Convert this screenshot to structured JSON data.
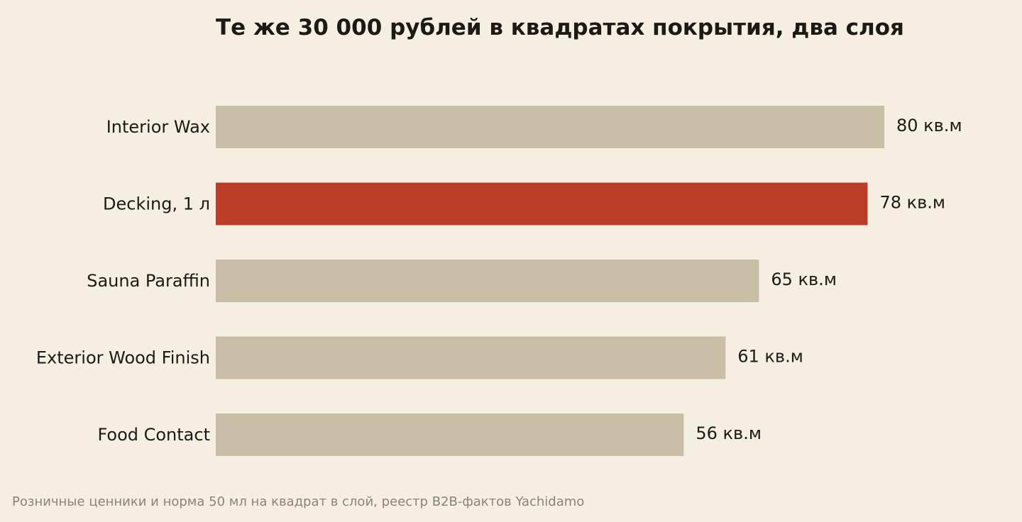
{
  "chart_data": {
    "type": "bar",
    "orientation": "horizontal",
    "title": "Те же 30 000 рублей в квадратах покрытия, два слоя",
    "categories": [
      "Interior Wax",
      "Decking, 1 л",
      "Sauna Paraffin",
      "Exterior Wood Finish",
      "Food Contact"
    ],
    "values": [
      80,
      78,
      65,
      61,
      56
    ],
    "value_labels": [
      "80 кв.м",
      "78 кв.м",
      "65 кв.м",
      "61 кв.м",
      "56 кв.м"
    ],
    "highlight": "Decking, 1 л",
    "xlim": [
      0,
      80
    ],
    "grid": false,
    "source": "Розничные ценники и норма 50 мл на квадрат в слой, реестр B2B-фактов Yachidamo"
  },
  "colors": {
    "background": "#f5efe2",
    "bar": "#c9bfa6",
    "highlight": "#bb3d27",
    "text": "#1c1a14",
    "source": "#8a8478"
  }
}
